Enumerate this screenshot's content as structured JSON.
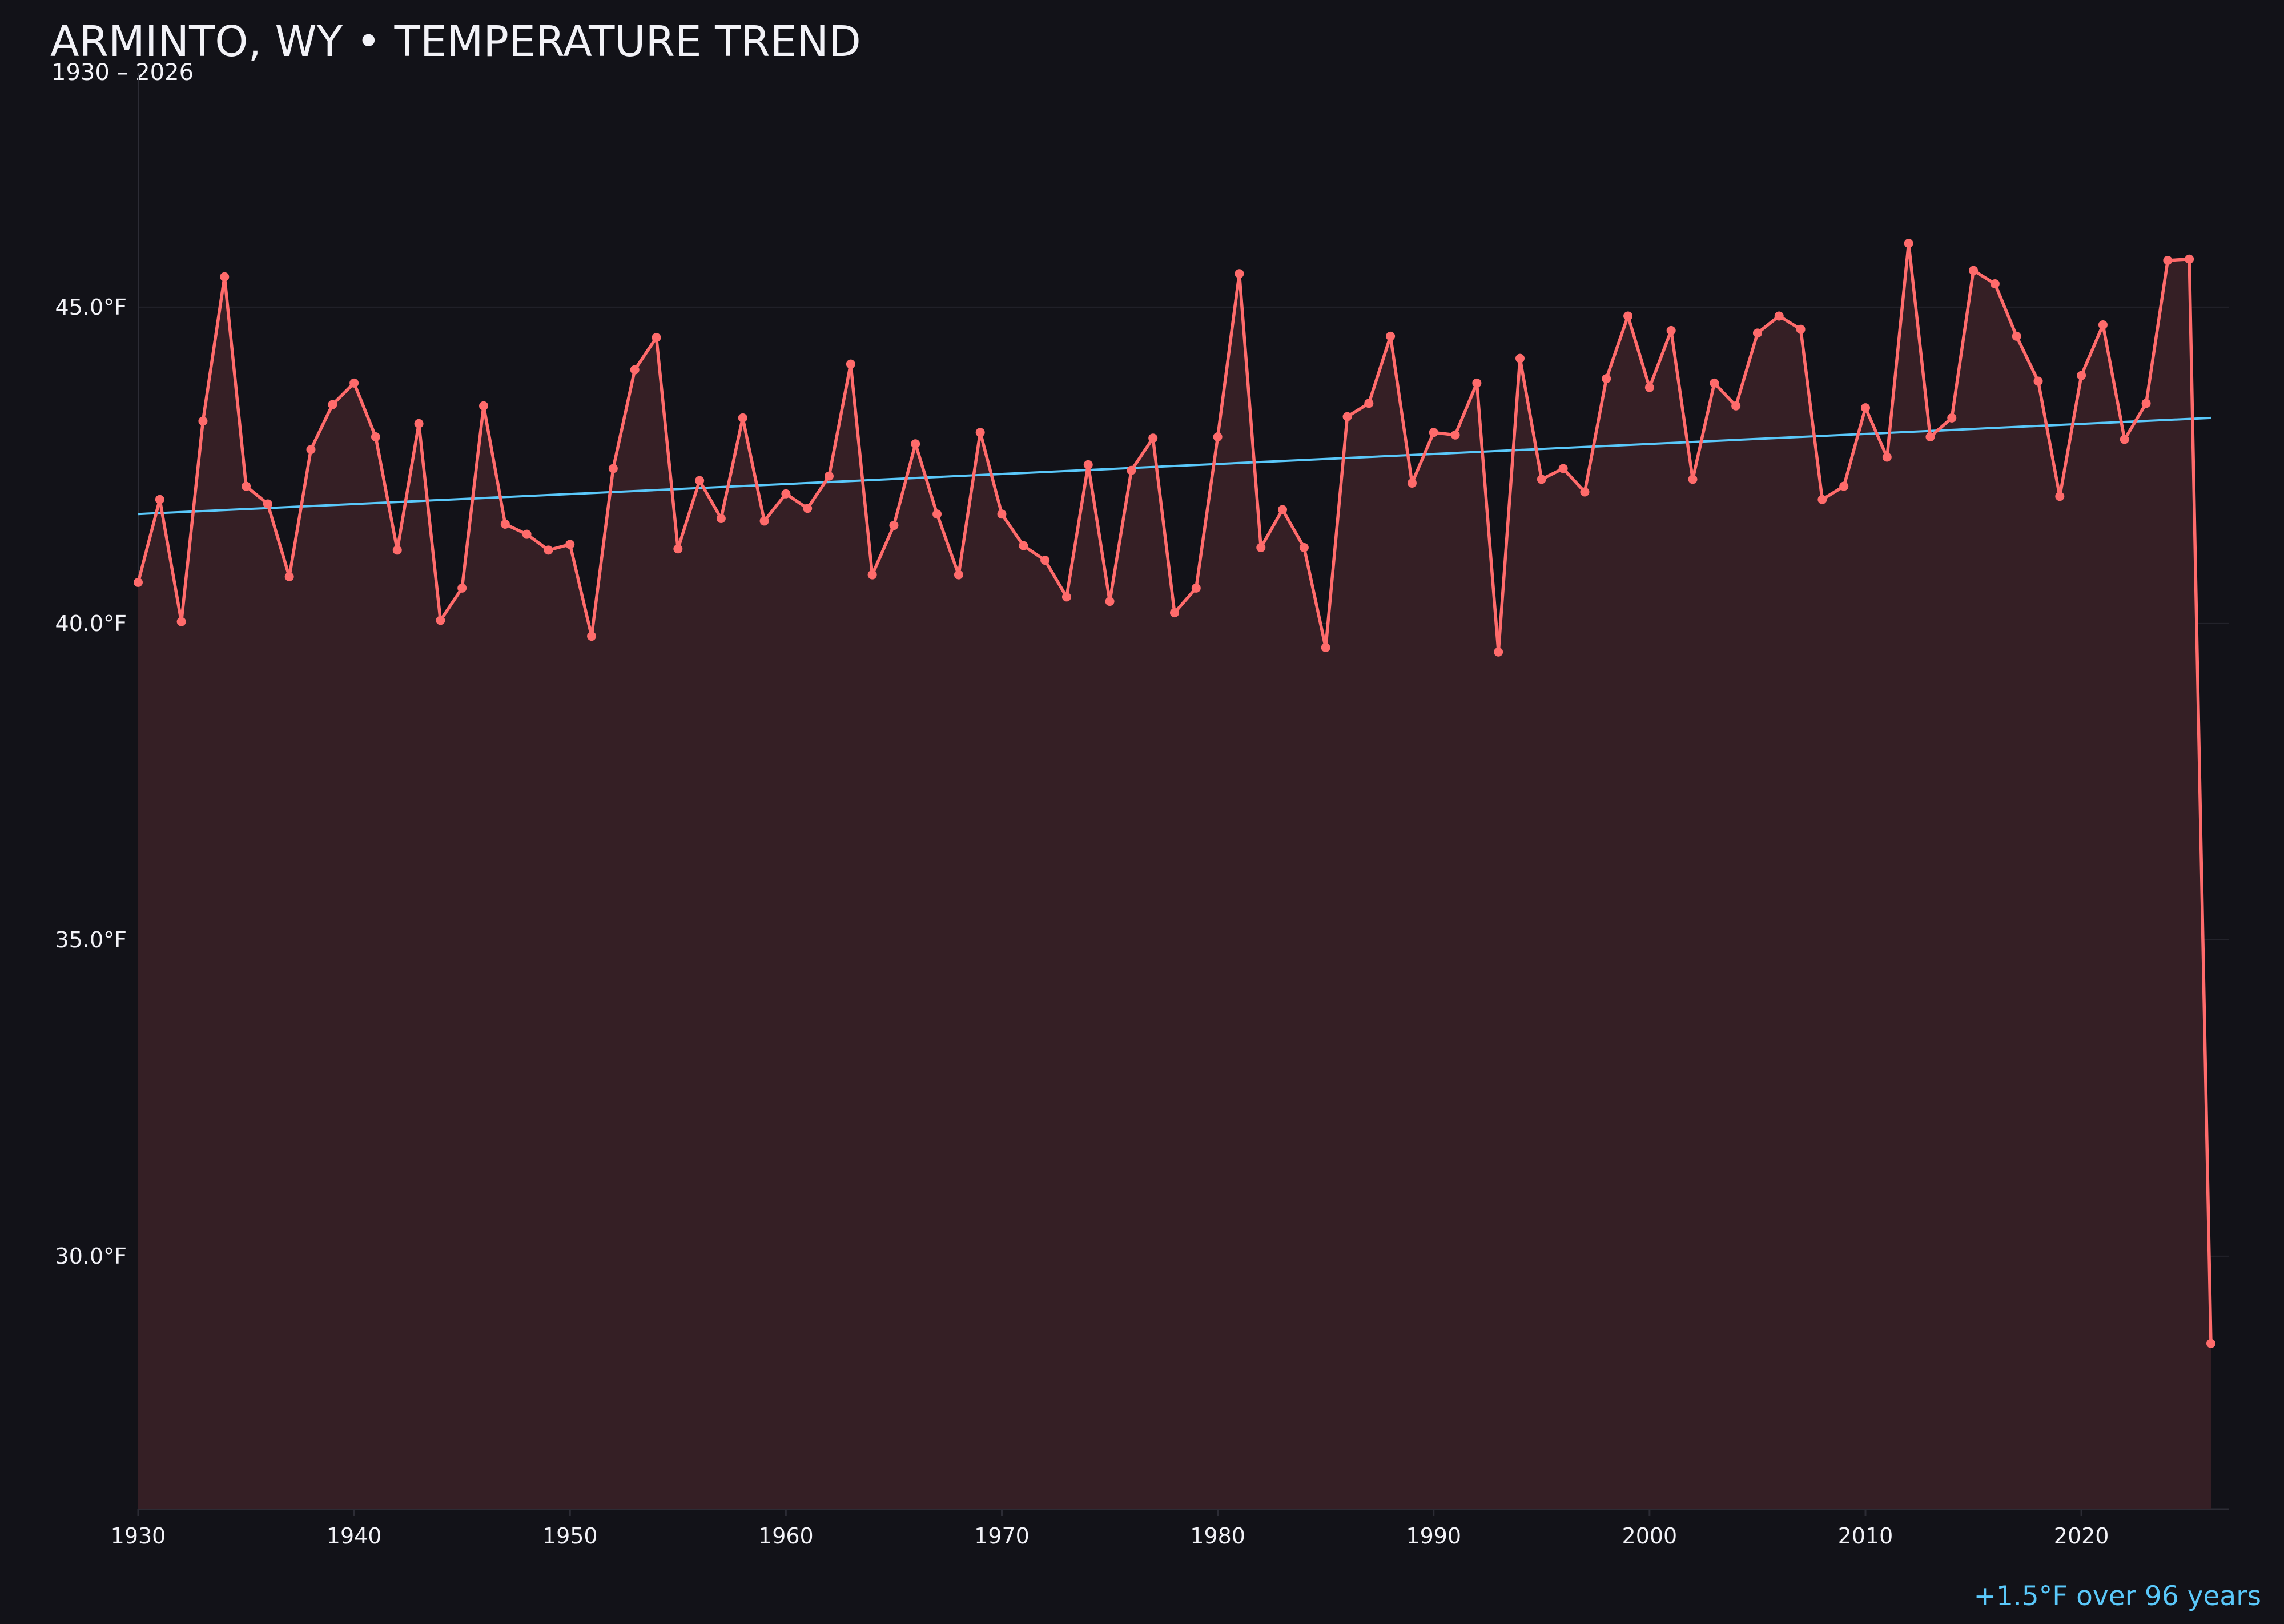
{
  "title": "ARMINTO, WY • TEMPERATURE TREND",
  "subtitle": "1930 – 2026",
  "footer": "+1.5°F over 96 years",
  "colors": {
    "background": "#121218",
    "line": "#ff6b6b",
    "fill": "#351f25",
    "trend": "#5ac8fa",
    "grid": "#23232b",
    "text": "#f2f2f7"
  },
  "chart_data": {
    "type": "area",
    "title": "ARMINTO, WY • TEMPERATURE TREND",
    "xlabel": "",
    "ylabel": "",
    "xlim": [
      1930,
      2026
    ],
    "ylim": [
      26.0,
      48.7
    ],
    "grid": true,
    "x_ticks": [
      1930,
      1940,
      1950,
      1960,
      1970,
      1980,
      1990,
      2000,
      2010,
      2020
    ],
    "x_tick_labels": [
      "1930",
      "1940",
      "1950",
      "1960",
      "1970",
      "1980",
      "1990",
      "2000",
      "2010",
      "2020"
    ],
    "y_ticks": [
      30,
      35,
      40,
      45
    ],
    "y_tick_labels": [
      "30.0°F",
      "35.0°F",
      "40.0°F",
      "45.0°F"
    ],
    "x": [
      1930,
      1931,
      1932,
      1933,
      1934,
      1935,
      1936,
      1937,
      1938,
      1939,
      1940,
      1941,
      1942,
      1943,
      1944,
      1945,
      1946,
      1947,
      1948,
      1949,
      1950,
      1951,
      1952,
      1953,
      1954,
      1955,
      1956,
      1957,
      1958,
      1959,
      1960,
      1961,
      1962,
      1963,
      1964,
      1965,
      1966,
      1967,
      1968,
      1969,
      1970,
      1971,
      1972,
      1973,
      1974,
      1975,
      1976,
      1977,
      1978,
      1979,
      1980,
      1981,
      1982,
      1983,
      1984,
      1985,
      1986,
      1987,
      1988,
      1989,
      1990,
      1991,
      1992,
      1993,
      1994,
      1995,
      1996,
      1997,
      1998,
      1999,
      2000,
      2001,
      2002,
      2003,
      2004,
      2005,
      2006,
      2007,
      2008,
      2009,
      2010,
      2011,
      2012,
      2013,
      2014,
      2015,
      2016,
      2017,
      2018,
      2019,
      2020,
      2021,
      2022,
      2023,
      2024,
      2025,
      2026
    ],
    "values": [
      40.65,
      41.96,
      40.03,
      43.2,
      45.48,
      42.17,
      41.89,
      40.74,
      42.75,
      43.46,
      43.8,
      42.95,
      41.16,
      43.16,
      40.05,
      40.56,
      43.44,
      41.57,
      41.41,
      41.16,
      41.25,
      39.8,
      42.45,
      44.01,
      44.52,
      41.18,
      42.26,
      41.66,
      43.25,
      41.62,
      42.05,
      41.82,
      42.33,
      44.1,
      40.77,
      41.55,
      42.84,
      41.73,
      40.77,
      43.02,
      41.73,
      41.23,
      41.0,
      40.42,
      42.51,
      40.35,
      42.42,
      42.93,
      40.17,
      40.56,
      42.95,
      45.53,
      41.2,
      41.8,
      41.2,
      39.62,
      43.27,
      43.48,
      44.54,
      42.22,
      43.02,
      42.98,
      43.8,
      39.55,
      44.19,
      42.28,
      42.45,
      42.08,
      43.87,
      44.86,
      43.73,
      44.63,
      42.28,
      43.8,
      43.44,
      44.59,
      44.86,
      44.65,
      41.96,
      42.17,
      43.41,
      42.63,
      46.01,
      42.95,
      43.25,
      45.58,
      45.37,
      44.54,
      43.83,
      42.01,
      43.92,
      44.72,
      42.91,
      43.48,
      45.74,
      45.76,
      28.62
    ],
    "trend": {
      "x": [
        1930,
        2026
      ],
      "values": [
        41.73,
        43.25
      ]
    }
  }
}
